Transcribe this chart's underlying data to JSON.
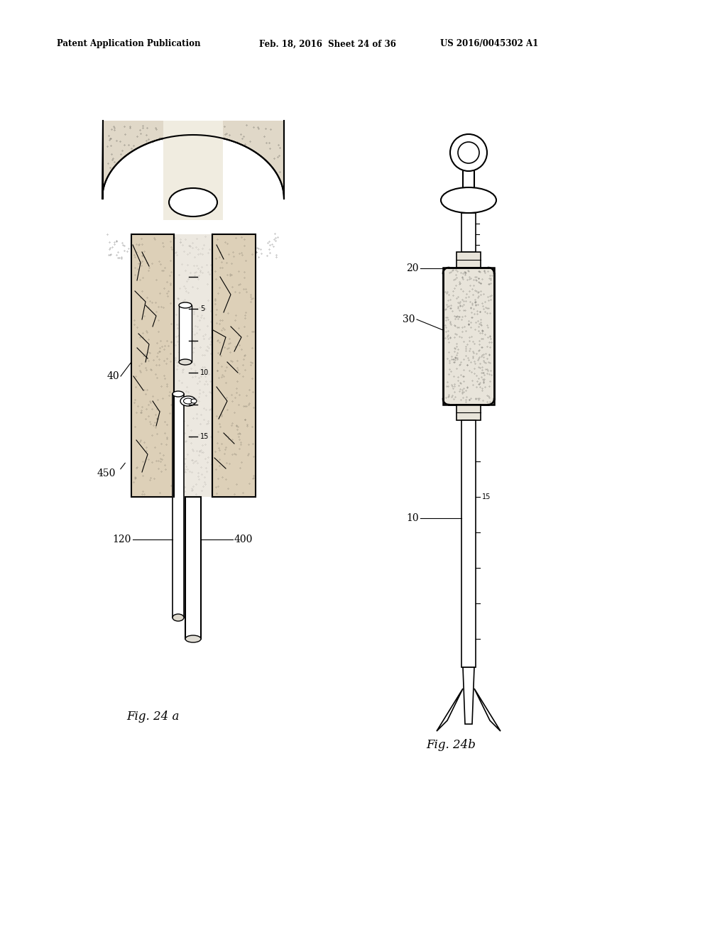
{
  "background_color": "#ffffff",
  "header_left": "Patent Application Publication",
  "header_mid": "Feb. 18, 2016  Sheet 24 of 36",
  "header_right": "US 2016/0045302 A1",
  "fig24a_label": "Fig. 24 a",
  "fig24b_label": "Fig. 24b"
}
